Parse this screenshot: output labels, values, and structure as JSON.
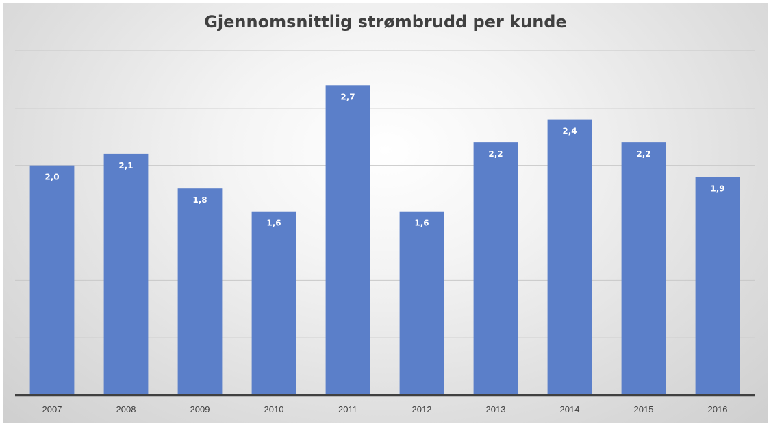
{
  "chart_data": {
    "type": "bar",
    "title": "Gjennomsnittlig strømbrudd per kunde",
    "xlabel": "",
    "ylabel": "",
    "categories": [
      "2007",
      "2008",
      "2009",
      "2010",
      "2011",
      "2012",
      "2013",
      "2014",
      "2015",
      "2016"
    ],
    "values": [
      2.0,
      2.1,
      1.8,
      1.6,
      2.7,
      1.6,
      2.2,
      2.4,
      2.2,
      1.9
    ],
    "data_labels": [
      "2,0",
      "2,1",
      "1,8",
      "1,6",
      "2,7",
      "1,6",
      "2,2",
      "2,4",
      "2,2",
      "1,9"
    ],
    "ylim": [
      0,
      3.0
    ],
    "grid": true,
    "legend": "none",
    "colors": {
      "bar": "#5b7fc9",
      "gridline": "#c8c8c8",
      "axis": "#404040",
      "title": "#404040"
    }
  }
}
